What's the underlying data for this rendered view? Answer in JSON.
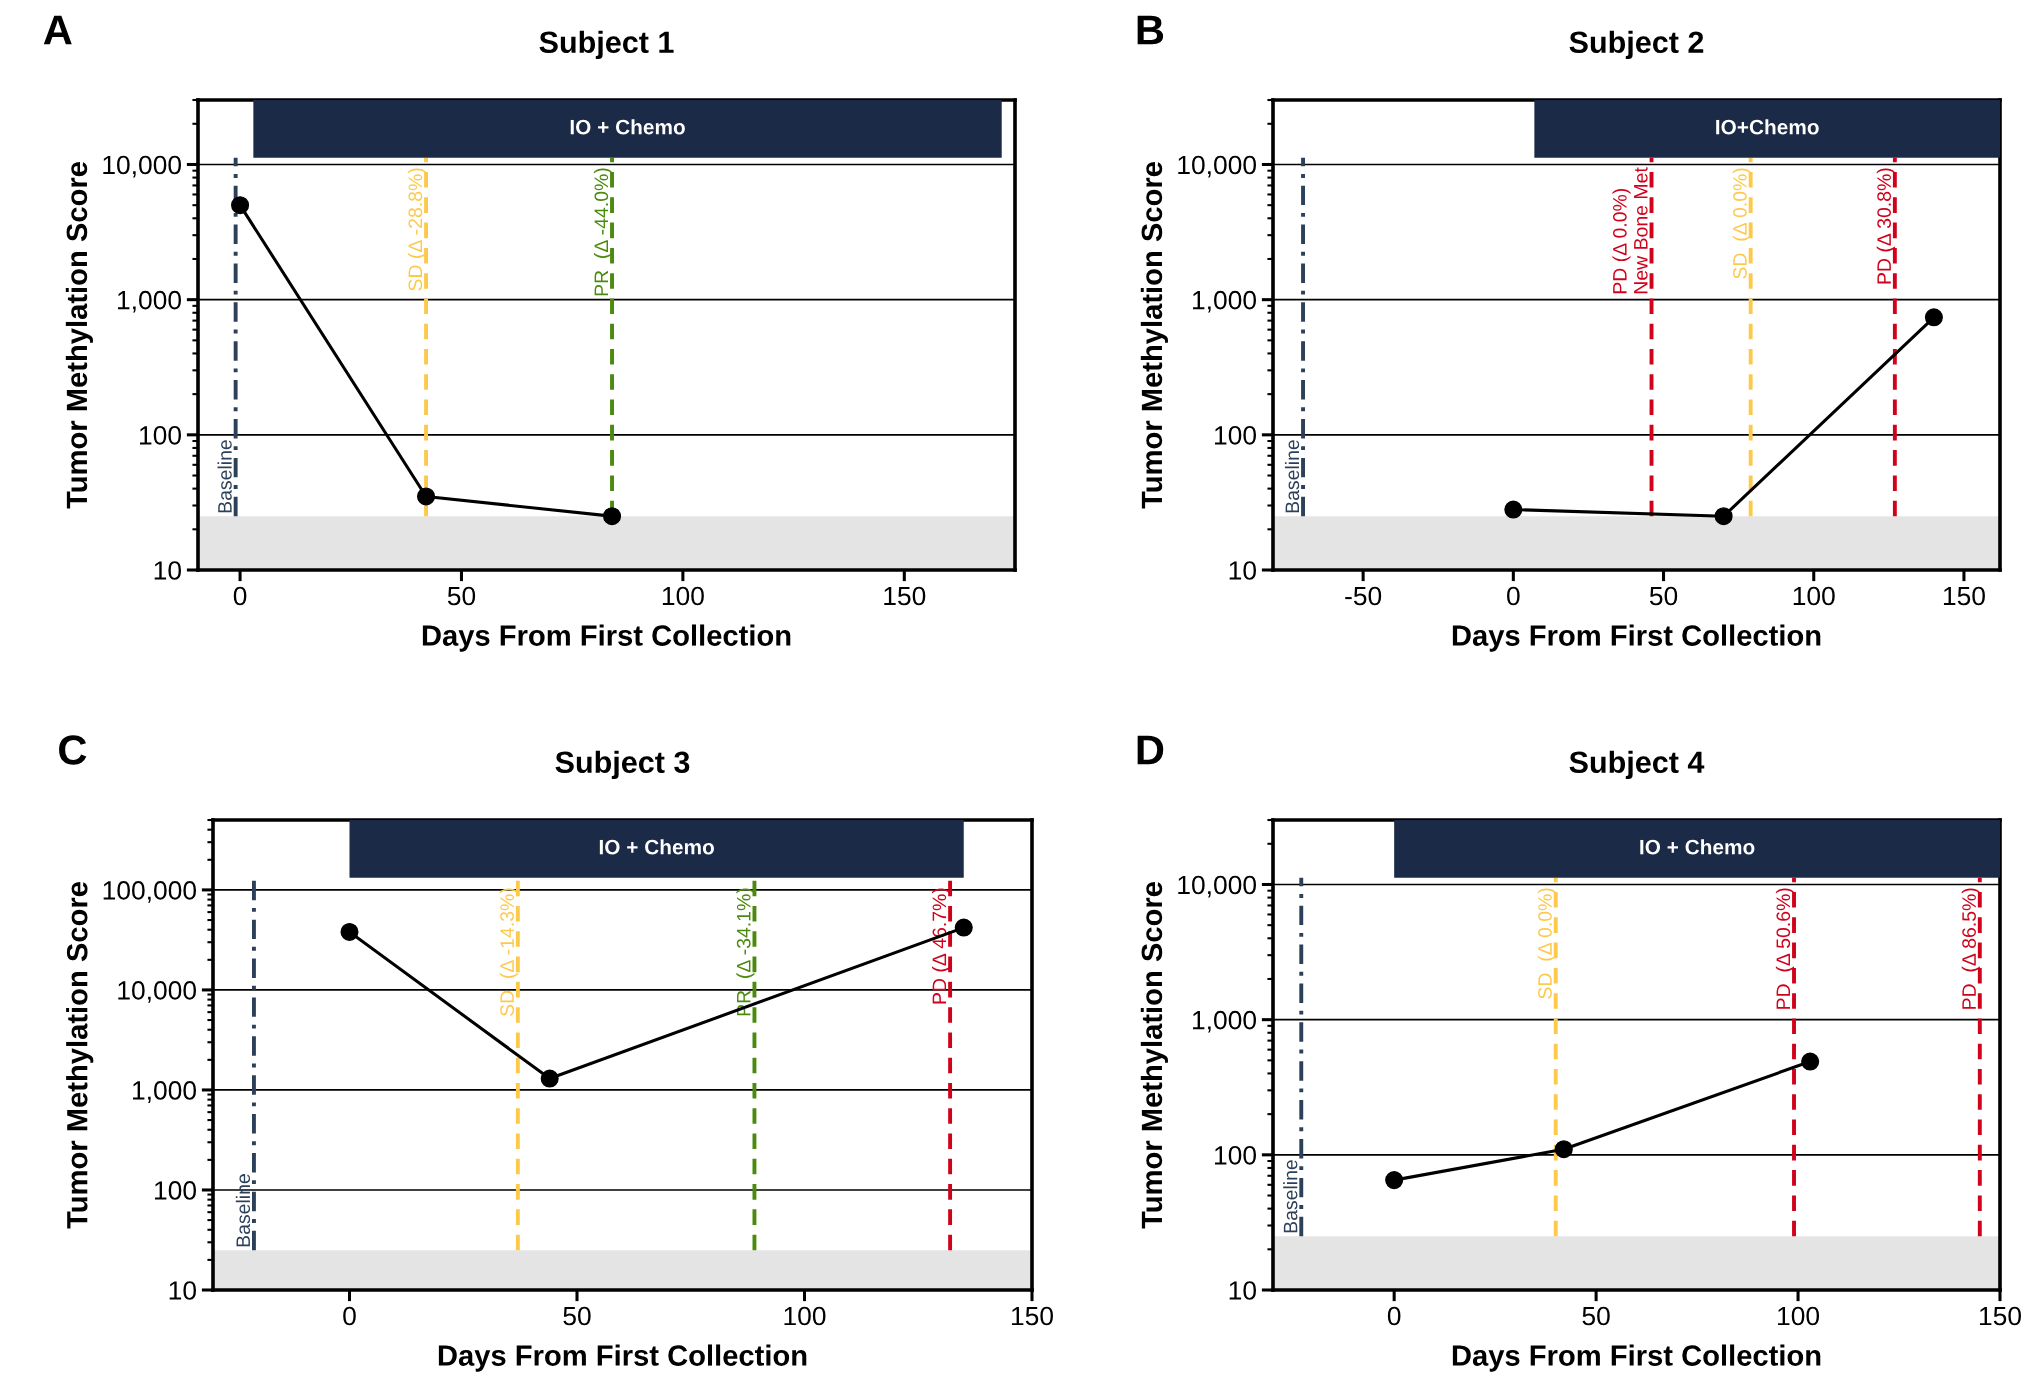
{
  "chart_data": [
    {
      "type": "line",
      "title": "Subject 1",
      "xlabel": "Days From First Collection",
      "ylabel": "Tumor Methylation Score",
      "annotations": [
        "A"
      ],
      "log": "y",
      "grid": "y",
      "marker": "circle",
      "line_style": "solid",
      "legend": false,
      "xlim": [
        -9.5,
        175
      ],
      "xticks": [
        0,
        50,
        100,
        150
      ],
      "ylim": [
        10,
        30000
      ],
      "yticks": [
        10,
        100,
        {
          "value": 1000,
          "label": "1,000"
        },
        {
          "value": 10000,
          "label": "10,000"
        }
      ],
      "series": [
        {
          "color": "#000000",
          "x": [
            0,
            42,
            84
          ],
          "values": [
            5000,
            35,
            25
          ]
        }
      ],
      "ref_lines": [
        {
          "axis": "x",
          "value": -1,
          "label": "Baseline",
          "color": "#2d4059",
          "line_style": "dotted"
        },
        {
          "axis": "x",
          "value": 42,
          "label": "SD (Δ -28.8%)",
          "color": "#fdc94a",
          "line_style": "dashed"
        },
        {
          "axis": "x",
          "value": 84,
          "label": "PR  (Δ -44.0%)",
          "color": "#4a8a0c",
          "line_style": "dashed"
        }
      ],
      "bands": [
        {
          "axis": "x",
          "from": 3,
          "to": 172,
          "label": "IO + Chemo",
          "color": "#1b2a47"
        },
        {
          "axis": "y",
          "from": 10,
          "to": 25,
          "color": "#e4e4e4"
        }
      ]
    },
    {
      "type": "line",
      "title": "Subject 2",
      "xlabel": "Days From First Collection",
      "ylabel": "Tumor Methylation Score",
      "annotations": [
        "B"
      ],
      "log": "y",
      "grid": "y",
      "marker": "circle",
      "line_style": "solid",
      "legend": false,
      "xlim": [
        -80,
        162
      ],
      "xticks": [
        -50,
        0,
        50,
        100,
        150
      ],
      "ylim": [
        10,
        30000
      ],
      "yticks": [
        10,
        100,
        {
          "value": 1000,
          "label": "1,000"
        },
        {
          "value": 10000,
          "label": "10,000"
        }
      ],
      "series": [
        {
          "color": "#000000",
          "x": [
            0,
            70,
            140
          ],
          "values": [
            28,
            25,
            740
          ]
        }
      ],
      "ref_lines": [
        {
          "axis": "x",
          "value": -70,
          "label": "Baseline",
          "color": "#2d4059",
          "line_style": "dotted"
        },
        {
          "axis": "x",
          "value": 46,
          "label": "PD (Δ 0.0%)\nNew Bone Met",
          "color": "#d0021b",
          "line_style": "dashed"
        },
        {
          "axis": "x",
          "value": 79,
          "label": "SD  (Δ 0.0%)",
          "color": "#fdc94a",
          "line_style": "dashed"
        },
        {
          "axis": "x",
          "value": 127,
          "label": "PD (Δ 30.8%)",
          "color": "#d0021b",
          "line_style": "dashed"
        }
      ],
      "bands": [
        {
          "axis": "x",
          "from": 7,
          "to": 162,
          "label": "IO+Chemo",
          "color": "#1b2a47"
        },
        {
          "axis": "y",
          "from": 10,
          "to": 25,
          "color": "#e4e4e4"
        }
      ]
    },
    {
      "type": "line",
      "title": "Subject 3",
      "xlabel": "Days From First Collection",
      "ylabel": "Tumor Methylation Score",
      "annotations": [
        "C"
      ],
      "log": "y",
      "grid": "y",
      "marker": "circle",
      "line_style": "solid",
      "legend": false,
      "xlim": [
        -30,
        150
      ],
      "xticks": [
        0,
        50,
        100,
        150
      ],
      "ylim": [
        10,
        500000
      ],
      "yticks": [
        10,
        100,
        {
          "value": 1000,
          "label": "1,000"
        },
        {
          "value": 10000,
          "label": "10,000"
        },
        {
          "value": 100000,
          "label": "100,000"
        }
      ],
      "series": [
        {
          "color": "#000000",
          "x": [
            0,
            44,
            135
          ],
          "values": [
            38000,
            1300,
            42000
          ]
        }
      ],
      "ref_lines": [
        {
          "axis": "x",
          "value": -21,
          "label": "Baseline",
          "color": "#2d4059",
          "line_style": "dotted"
        },
        {
          "axis": "x",
          "value": 37,
          "label": "SD  (Δ -14.3%)",
          "color": "#fdc94a",
          "line_style": "dashed"
        },
        {
          "axis": "x",
          "value": 89,
          "label": "PR  (Δ -34.1%)",
          "color": "#4a8a0c",
          "line_style": "dashed"
        },
        {
          "axis": "x",
          "value": 132,
          "label": "PD (Δ 46.7%)",
          "color": "#d0021b",
          "line_style": "dashed"
        }
      ],
      "bands": [
        {
          "axis": "x",
          "from": 0,
          "to": 135,
          "label": "IO + Chemo",
          "color": "#1b2a47"
        },
        {
          "axis": "y",
          "from": 10,
          "to": 25,
          "color": "#e4e4e4"
        }
      ]
    },
    {
      "type": "line",
      "title": "Subject 4",
      "xlabel": "Days From First Collection",
      "ylabel": "Tumor Methylation Score",
      "annotations": [
        "D"
      ],
      "log": "y",
      "grid": "y",
      "marker": "circle",
      "line_style": "solid",
      "legend": false,
      "xlim": [
        -30,
        150
      ],
      "xticks": [
        0,
        50,
        100,
        150
      ],
      "ylim": [
        10,
        30000
      ],
      "yticks": [
        10,
        100,
        {
          "value": 1000,
          "label": "1,000"
        },
        {
          "value": 10000,
          "label": "10,000"
        }
      ],
      "series": [
        {
          "color": "#000000",
          "x": [
            0,
            42,
            103
          ],
          "values": [
            65,
            110,
            490
          ]
        }
      ],
      "ref_lines": [
        {
          "axis": "x",
          "value": -23,
          "label": "Baseline",
          "color": "#2d4059",
          "line_style": "dotted"
        },
        {
          "axis": "x",
          "value": 40,
          "label": "SD  (Δ 0.0%)",
          "color": "#fdc94a",
          "line_style": "dashed"
        },
        {
          "axis": "x",
          "value": 99,
          "label": "PD  (Δ 50.6%)",
          "color": "#d0021b",
          "line_style": "dashed"
        },
        {
          "axis": "x",
          "value": 145,
          "label": "PD  (Δ 86.5%)",
          "color": "#d0021b",
          "line_style": "dashed"
        }
      ],
      "bands": [
        {
          "axis": "x",
          "from": 0,
          "to": 150,
          "label": "IO + Chemo",
          "color": "#1b2a47"
        },
        {
          "axis": "y",
          "from": 10,
          "to": 25,
          "color": "#e4e4e4"
        }
      ]
    }
  ]
}
